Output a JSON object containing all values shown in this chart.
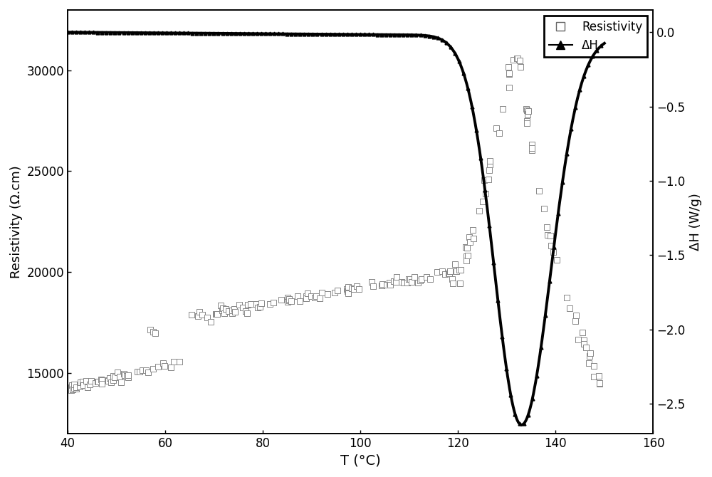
{
  "title": "",
  "xlabel": "T (°C)",
  "ylabel_left": "Resistivity (Ω.cm)",
  "ylabel_right": "ΔH (W/g)",
  "xlim": [
    40,
    160
  ],
  "ylim_left": [
    12000,
    33000
  ],
  "ylim_right": [
    -2.7,
    0.15
  ],
  "xticks": [
    40,
    60,
    80,
    100,
    120,
    140,
    160
  ],
  "yticks_left": [
    15000,
    20000,
    25000,
    30000
  ],
  "yticks_right": [
    0.0,
    -0.5,
    -1.0,
    -1.5,
    -2.0,
    -2.5
  ],
  "background_color": "#ffffff",
  "legend_resistivity": "Resistivity",
  "legend_dh": "ΔH"
}
